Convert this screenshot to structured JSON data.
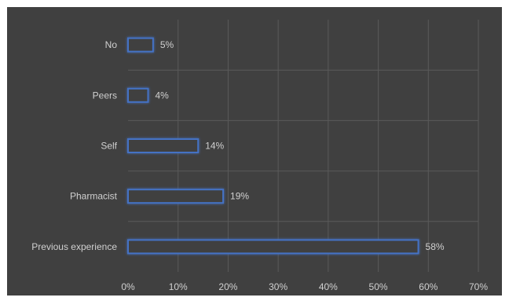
{
  "chart_data": {
    "type": "bar",
    "orientation": "horizontal",
    "categories": [
      "No",
      "Peers",
      "Self",
      "Pharmacist",
      "Previous experience"
    ],
    "values": [
      5,
      4,
      14,
      19,
      58
    ],
    "data_labels": [
      "5%",
      "4%",
      "14%",
      "19%",
      "58%"
    ],
    "x_ticks": [
      "0%",
      "10%",
      "20%",
      "30%",
      "40%",
      "50%",
      "60%",
      "70%"
    ],
    "xlim": [
      0,
      70
    ],
    "title": "",
    "xlabel": "",
    "ylabel": "",
    "grid": true,
    "legend": "none",
    "colors": {
      "background": "#404040",
      "bar_fill": "#404040",
      "bar_outline": "#4472c4",
      "bar_glow": "#2f5597",
      "gridline": "#5a5a5a",
      "text": "#d0d0d0"
    }
  }
}
